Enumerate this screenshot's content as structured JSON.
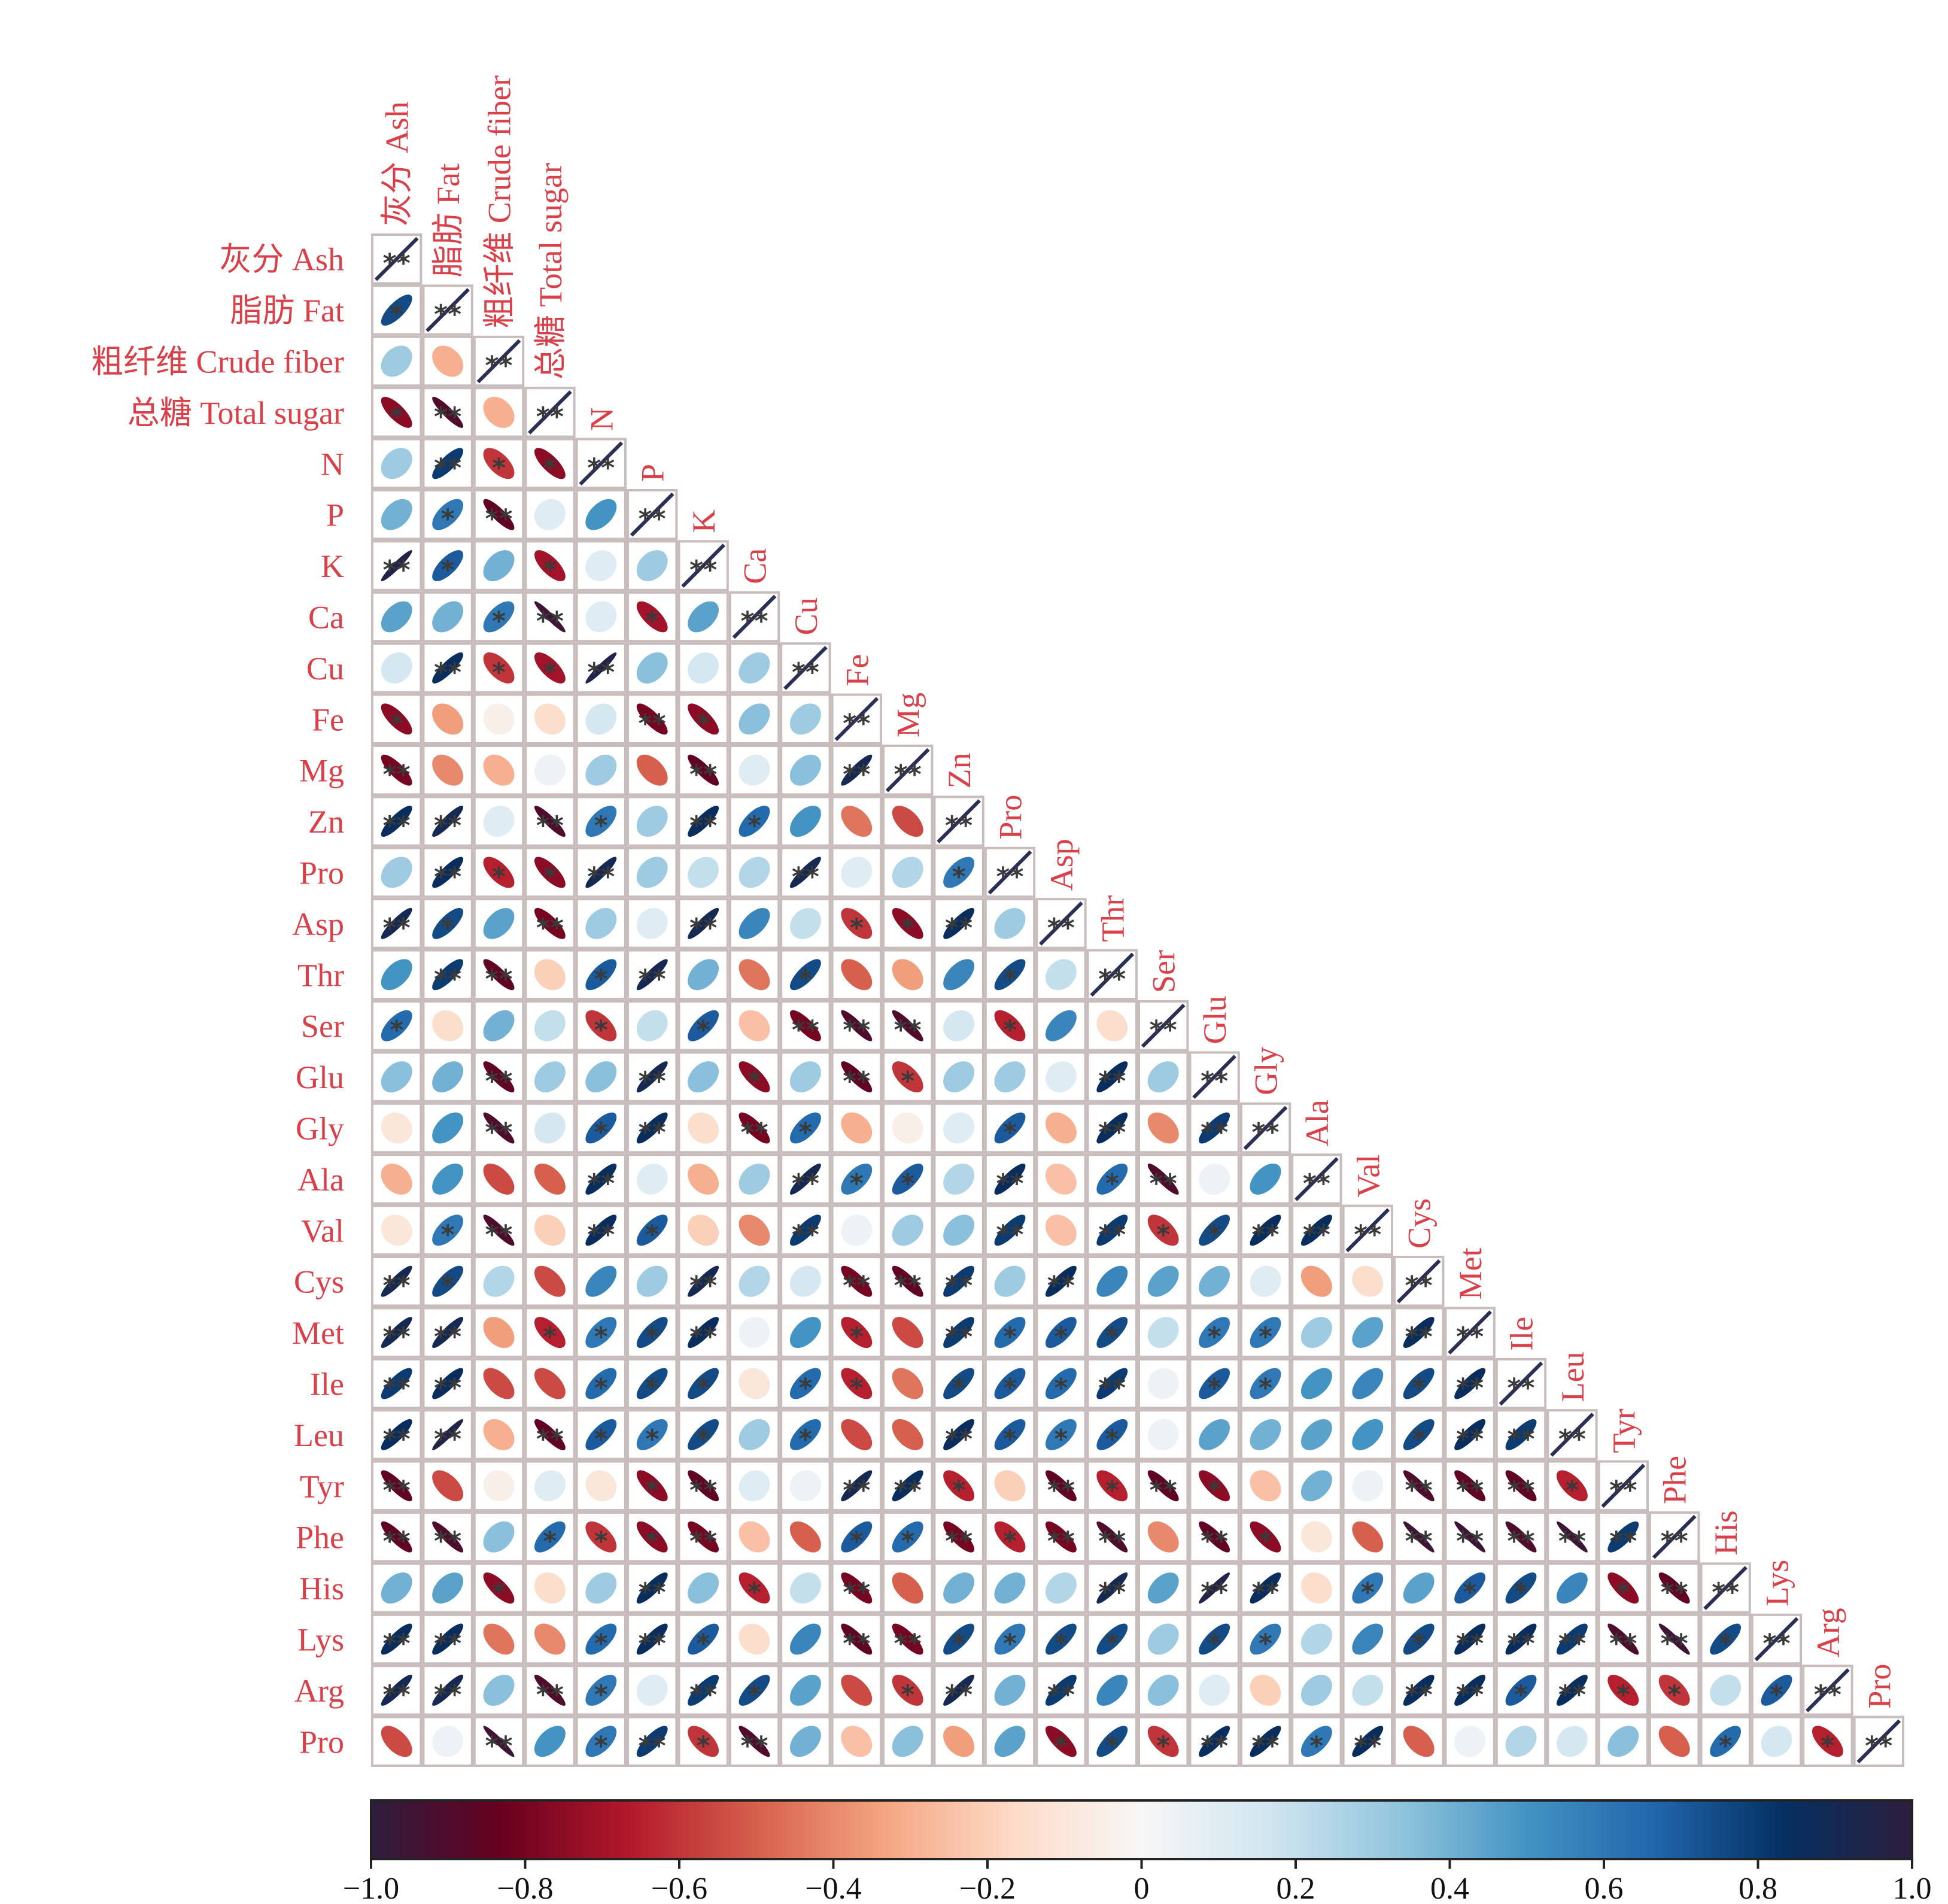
{
  "chart_data": {
    "type": "heatmap",
    "subtype": "lower-triangle correlation ellipse matrix",
    "labels": [
      "灰分 Ash",
      "脂肪 Fat",
      "粗纤维 Crude fiber",
      "总糖 Total sugar",
      "N",
      "P",
      "K",
      "Ca",
      "Cu",
      "Fe",
      "Mg",
      "Zn",
      "Pro",
      "Asp",
      "Thr",
      "Ser",
      "Glu",
      "Gly",
      "Ala",
      "Val",
      "Cys",
      "Met",
      "Ile",
      "Leu",
      "Tyr",
      "Phe",
      "His",
      "Lys",
      "Arg",
      "Pro"
    ],
    "significance_note": "* and ** mark significant correlations",
    "matrix": [
      [
        1
      ],
      [
        0.75,
        1
      ],
      [
        0.3,
        -0.3,
        1
      ],
      [
        -0.75,
        -0.9,
        -0.3,
        1
      ],
      [
        0.3,
        0.8,
        -0.6,
        -0.75,
        1
      ],
      [
        0.4,
        0.6,
        -0.85,
        0.1,
        0.5,
        1
      ],
      [
        0.95,
        0.7,
        0.4,
        -0.7,
        0.1,
        0.3,
        1
      ],
      [
        0.45,
        0.4,
        0.6,
        -0.95,
        0.1,
        -0.7,
        0.45,
        1
      ],
      [
        0.15,
        0.85,
        -0.6,
        -0.7,
        0.95,
        0.35,
        0.15,
        0.3,
        1
      ],
      [
        -0.75,
        -0.35,
        -0.05,
        -0.15,
        0.15,
        -0.8,
        -0.75,
        0.35,
        0.3,
        1
      ],
      [
        -0.8,
        -0.4,
        -0.3,
        0.05,
        0.3,
        -0.5,
        -0.85,
        0.1,
        0.35,
        0.9,
        1
      ],
      [
        0.85,
        0.9,
        0.1,
        -0.9,
        0.6,
        0.3,
        0.85,
        0.65,
        0.5,
        -0.45,
        -0.55,
        1
      ],
      [
        0.3,
        0.85,
        -0.65,
        -0.75,
        0.9,
        0.3,
        0.2,
        0.25,
        0.9,
        0.1,
        0.25,
        0.6,
        1
      ],
      [
        0.9,
        0.75,
        0.45,
        -0.8,
        0.3,
        0.1,
        0.9,
        0.55,
        0.2,
        -0.6,
        -0.75,
        0.85,
        0.3,
        1
      ],
      [
        0.5,
        0.8,
        -0.85,
        -0.2,
        0.7,
        0.9,
        0.4,
        -0.45,
        0.75,
        -0.5,
        -0.35,
        0.55,
        0.75,
        0.2,
        1
      ],
      [
        0.65,
        -0.15,
        0.4,
        0.2,
        -0.6,
        0.2,
        0.7,
        -0.25,
        -0.8,
        -0.9,
        -0.9,
        0.15,
        -0.65,
        0.55,
        -0.15,
        1
      ],
      [
        0.35,
        0.4,
        -0.85,
        0.3,
        0.35,
        0.9,
        0.35,
        -0.75,
        0.3,
        -0.85,
        -0.6,
        0.3,
        0.3,
        0.1,
        0.85,
        0.3,
        1
      ],
      [
        -0.1,
        0.5,
        -0.9,
        0.15,
        0.7,
        0.85,
        -0.15,
        -0.8,
        0.65,
        -0.3,
        -0.05,
        0.1,
        0.7,
        -0.3,
        0.85,
        -0.4,
        0.8,
        1
      ],
      [
        -0.3,
        0.5,
        -0.55,
        -0.5,
        0.85,
        0.1,
        -0.3,
        0.3,
        0.9,
        0.6,
        0.7,
        0.25,
        0.85,
        -0.25,
        0.65,
        -0.9,
        0.05,
        0.5,
        1
      ],
      [
        -0.1,
        0.6,
        -0.9,
        -0.2,
        0.85,
        0.7,
        -0.2,
        -0.4,
        0.8,
        0.05,
        0.3,
        0.35,
        0.8,
        -0.25,
        0.8,
        -0.6,
        0.75,
        0.85,
        0.85,
        1
      ],
      [
        0.9,
        0.75,
        0.25,
        -0.55,
        0.55,
        0.3,
        0.9,
        0.25,
        0.15,
        -0.8,
        -0.85,
        0.8,
        0.3,
        0.85,
        0.55,
        0.45,
        0.4,
        0.1,
        -0.35,
        -0.15,
        1
      ],
      [
        0.9,
        0.9,
        -0.35,
        -0.65,
        0.6,
        0.75,
        0.85,
        0.05,
        0.5,
        -0.65,
        -0.55,
        0.8,
        0.65,
        0.7,
        0.75,
        0.2,
        0.6,
        0.6,
        0.3,
        0.45,
        0.85,
        1
      ],
      [
        0.8,
        0.85,
        -0.55,
        -0.55,
        0.65,
        0.75,
        0.75,
        -0.1,
        0.65,
        -0.65,
        -0.45,
        0.75,
        0.7,
        0.65,
        0.8,
        0.05,
        0.7,
        0.6,
        0.5,
        0.55,
        0.75,
        0.85,
        1
      ],
      [
        0.85,
        0.95,
        -0.3,
        -0.85,
        0.7,
        0.6,
        0.75,
        0.3,
        0.65,
        -0.55,
        -0.5,
        0.85,
        0.7,
        0.6,
        0.7,
        0.05,
        0.45,
        0.4,
        0.45,
        0.5,
        0.75,
        0.85,
        0.8,
        1
      ],
      [
        -0.85,
        -0.55,
        -0.05,
        0.1,
        -0.1,
        -0.75,
        -0.85,
        0.1,
        0.05,
        0.9,
        0.85,
        -0.65,
        -0.2,
        -0.85,
        -0.65,
        -0.85,
        -0.75,
        -0.25,
        0.4,
        0.05,
        -0.9,
        -0.85,
        -0.85,
        -0.65,
        1
      ],
      [
        -0.85,
        -0.9,
        0.35,
        0.65,
        -0.6,
        -0.75,
        -0.8,
        -0.25,
        -0.5,
        0.7,
        0.65,
        -0.8,
        -0.65,
        -0.8,
        -0.9,
        -0.4,
        -0.85,
        -0.75,
        -0.1,
        -0.5,
        -0.95,
        -0.95,
        -0.9,
        -0.95,
        0.8,
        1
      ],
      [
        0.4,
        0.45,
        -0.75,
        -0.15,
        0.3,
        0.85,
        0.35,
        -0.65,
        0.2,
        -0.8,
        -0.5,
        0.4,
        0.4,
        0.25,
        0.9,
        0.45,
        0.95,
        0.85,
        -0.15,
        0.6,
        0.45,
        0.7,
        0.75,
        0.55,
        -0.75,
        -0.85,
        1
      ],
      [
        0.85,
        0.85,
        -0.45,
        -0.4,
        0.65,
        0.85,
        0.7,
        -0.15,
        0.55,
        -0.85,
        -0.8,
        0.75,
        0.6,
        0.75,
        0.75,
        0.3,
        0.75,
        0.6,
        0.25,
        0.55,
        0.75,
        0.85,
        0.85,
        0.8,
        -0.9,
        -0.95,
        0.75,
        1
      ],
      [
        0.9,
        0.9,
        0.35,
        -0.9,
        0.6,
        0.1,
        0.8,
        0.75,
        0.45,
        -0.55,
        -0.6,
        0.9,
        0.4,
        0.8,
        0.55,
        0.35,
        0.1,
        -0.2,
        0.3,
        0.2,
        0.85,
        0.85,
        0.7,
        0.85,
        -0.65,
        -0.6,
        0.2,
        0.7,
        1
      ],
      [
        -0.55,
        0.05,
        -0.95,
        0.5,
        0.6,
        0.8,
        -0.6,
        -0.9,
        0.4,
        -0.25,
        0.35,
        -0.35,
        0.45,
        -0.75,
        0.75,
        -0.6,
        0.85,
        0.85,
        0.6,
        0.85,
        -0.5,
        0.05,
        0.25,
        0.15,
        0.35,
        -0.5,
        0.65,
        0.15,
        -0.65,
        1
      ]
    ],
    "colorbar": {
      "range": [
        -1.0,
        1.0
      ],
      "ticks": [
        "−1.0",
        "−0.8",
        "−0.6",
        "−0.4",
        "−0.2",
        "0",
        "0.2",
        "0.4",
        "0.6",
        "0.8",
        "1.0"
      ],
      "colors": [
        "#2d1e3e",
        "#67001f",
        "#b2182b",
        "#d6604d",
        "#f4a582",
        "#fddbc7",
        "#f7f7f7",
        "#d1e5f0",
        "#92c5de",
        "#4393c3",
        "#2166ac",
        "#053061",
        "#2d1e3e"
      ]
    },
    "label_color": "#d9414a",
    "frame_color": "#c8bcbc"
  }
}
